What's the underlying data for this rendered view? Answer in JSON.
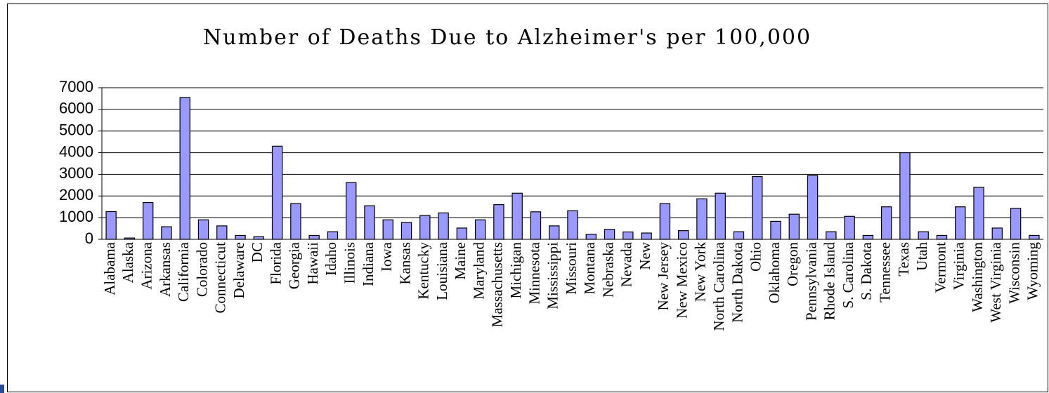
{
  "chart_data": {
    "type": "bar",
    "title": "Number of Deaths Due to Alzheimer's per 100,000",
    "categories": [
      "Alabama",
      "Alaska",
      "Arizona",
      "Arkansas",
      "California",
      "Colorado",
      "Connecticut",
      "Delaware",
      "DC",
      "Florida",
      "Georgia",
      "Hawaii",
      "Idaho",
      "Illinois",
      "Indiana",
      "Iowa",
      "Kansas",
      "Kentucky",
      "Louisiana",
      "Maine",
      "Maryland",
      "Massachusetts",
      "Michigan",
      "Minnesota",
      "Mississippi",
      "Missouri",
      "Montana",
      "Nebraska",
      "Nevada",
      "New",
      "New Jersey",
      "New Mexico",
      "New York",
      "North Carolina",
      "North Dakota",
      "Ohio",
      "Oklahoma",
      "Oregon",
      "Pennsylvania",
      "Rhode Island",
      "S. Carolina",
      "S. Dakota",
      "Tennessee",
      "Texas",
      "Utah",
      "Vermont",
      "Virginia",
      "Washington",
      "West Virginia",
      "Wisconsin",
      "Wyoming"
    ],
    "values": [
      1280,
      60,
      1700,
      580,
      6550,
      900,
      620,
      180,
      120,
      4300,
      1650,
      180,
      350,
      2620,
      1550,
      900,
      780,
      1100,
      1220,
      520,
      900,
      1600,
      2130,
      1270,
      620,
      1320,
      230,
      460,
      340,
      290,
      1650,
      400,
      1870,
      2130,
      350,
      2900,
      830,
      1160,
      2950,
      350,
      1060,
      180,
      1500,
      4000,
      350,
      180,
      1500,
      2400,
      520,
      1430,
      180
    ],
    "color": "#9999ff",
    "ylim": [
      0,
      7000
    ],
    "yticks": [
      0,
      1000,
      2000,
      3000,
      4000,
      5000,
      6000,
      7000
    ],
    "grid": true
  }
}
